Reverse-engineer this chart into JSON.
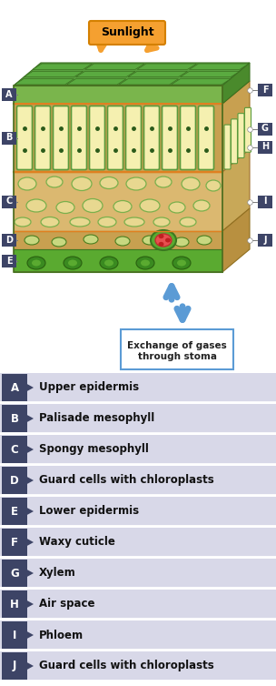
{
  "legend_items": [
    {
      "letter": "A",
      "text": "Upper epidermis"
    },
    {
      "letter": "B",
      "text": "Palisade mesophyll"
    },
    {
      "letter": "C",
      "text": "Spongy mesophyll"
    },
    {
      "letter": "D",
      "text": "Guard cells with chloroplasts"
    },
    {
      "letter": "E",
      "text": "Lower epidermis"
    },
    {
      "letter": "F",
      "text": "Waxy cuticle"
    },
    {
      "letter": "G",
      "text": "Xylem"
    },
    {
      "letter": "H",
      "text": "Air space"
    },
    {
      "letter": "I",
      "text": "Phloem"
    },
    {
      "letter": "J",
      "text": "Guard cells with chloroplasts"
    }
  ],
  "badge_bg_color": "#3d4466",
  "badge_text_color": "#ffffff",
  "row_bg_color": "#d8d8e8",
  "row_text_color": "#111111",
  "bg_color": "#ffffff",
  "separator_color": "#ffffff",
  "arrow_color": "#5b9bd5",
  "leaf_green_top": "#6ab04c",
  "leaf_green_dark": "#4a8a2c",
  "leaf_tan": "#c8a050",
  "leaf_tan_light": "#dbb870",
  "cell_yellow": "#f5f0b0",
  "cell_green_border": "#5a9a3c",
  "sunlight_orange": "#f5a030",
  "sunlight_orange_dark": "#d48000"
}
